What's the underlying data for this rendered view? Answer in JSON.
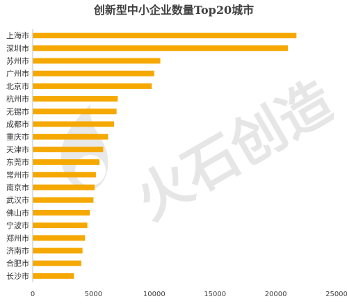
{
  "chart_data": {
    "type": "bar",
    "orientation": "horizontal",
    "title": "创新型中小企业数量Top20城市",
    "categories": [
      "上海市",
      "深圳市",
      "苏州市",
      "广州市",
      "北京市",
      "杭州市",
      "无锡市",
      "成都市",
      "重庆市",
      "天津市",
      "东莞市",
      "常州市",
      "南京市",
      "武汉市",
      "佛山市",
      "宁波市",
      "郑州市",
      "济南市",
      "合肥市",
      "长沙市"
    ],
    "values": [
      21700,
      21000,
      10500,
      10000,
      9800,
      7000,
      6900,
      6700,
      6200,
      5800,
      5500,
      5200,
      5100,
      5000,
      4700,
      4500,
      4300,
      4100,
      4000,
      3400
    ],
    "xlim": [
      0,
      25000
    ],
    "xticks": [
      "0",
      "5000",
      "10000",
      "15000",
      "20000",
      "25000"
    ],
    "xlabel": "",
    "ylabel": "",
    "grid": false,
    "bar_color": "#F5A800"
  },
  "watermark": {
    "text": "火石创造",
    "color": "#e6e6e6"
  }
}
